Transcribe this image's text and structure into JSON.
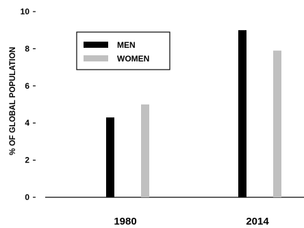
{
  "chart_data": {
    "type": "bar",
    "categories": [
      "1980",
      "2014"
    ],
    "series": [
      {
        "name": "MEN",
        "values": [
          4.3,
          9.0
        ],
        "color": "#000000"
      },
      {
        "name": "WOMEN",
        "values": [
          5.0,
          7.9
        ],
        "color": "#c0c0c0"
      }
    ],
    "ylabel": "% OF GLOBAL POPULATION",
    "xlabel": "",
    "title": "",
    "ylim": [
      0,
      10
    ],
    "yticks": [
      "0",
      "2",
      "4",
      "6",
      "8",
      "10"
    ],
    "legend_position": "top-left",
    "grid": false
  }
}
